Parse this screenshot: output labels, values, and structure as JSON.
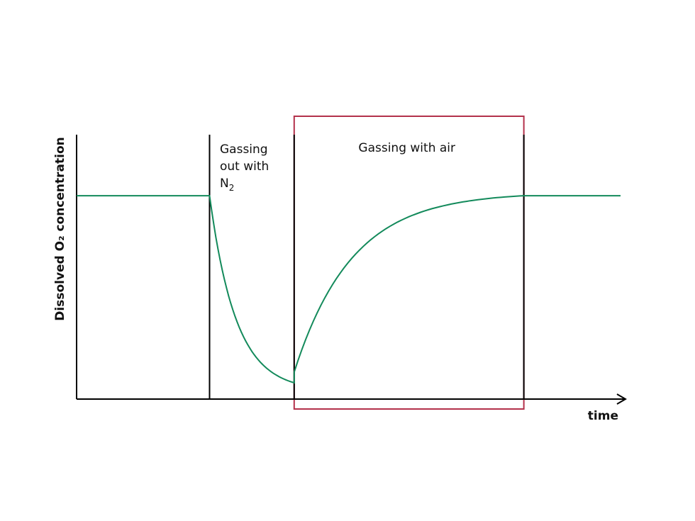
{
  "chart_data": {
    "type": "line",
    "title": "",
    "xlabel": "time",
    "ylabel": "Dissolved O₂ concentration",
    "grid": false,
    "x_ticks_shown": false,
    "y_ticks_shown": false,
    "units": "relative",
    "series": [
      {
        "color": "#138a5b",
        "x": [
          0,
          22,
          30,
          34,
          36,
          38,
          40,
          43,
          47,
          52,
          58,
          65,
          72,
          74,
          80,
          90
        ],
        "y": [
          1.0,
          1.0,
          0.35,
          0.17,
          0.12,
          0.08,
          0.07,
          0.33,
          0.55,
          0.72,
          0.84,
          0.93,
          0.99,
          1.0,
          1.0,
          1.0
        ]
      }
    ],
    "phases": [
      {
        "label_lines": [
          "Gassing",
          "out with"
        ],
        "label_formula": "N",
        "label_subscript": "2",
        "start": 22,
        "end": 36
      },
      {
        "label": "Gassing with air",
        "start": 36,
        "end": 74,
        "highlighted": true
      }
    ],
    "highlight_color": "#b3314b",
    "line_color": "#000000",
    "xlim": [
      0,
      90
    ],
    "ylim": [
      0,
      1.3
    ]
  }
}
